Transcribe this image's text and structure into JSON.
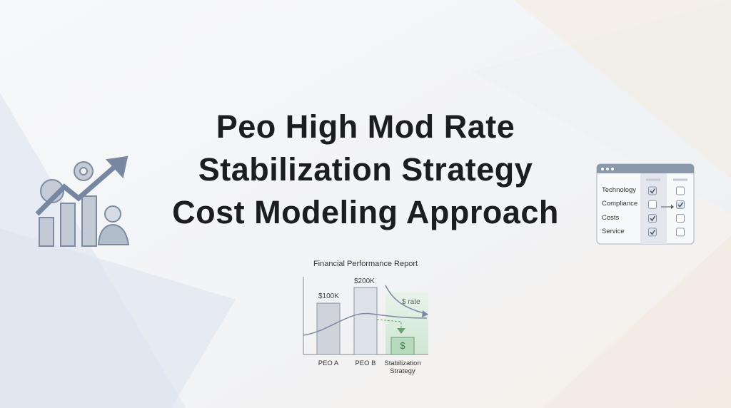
{
  "title_lines": [
    "Peo High Mod Rate",
    "Stabilization Strategy",
    "Cost Modeling Approach"
  ],
  "report": {
    "title": "Financial Performance Report",
    "bar_labels": [
      "$100K",
      "$200K"
    ],
    "rate_label": "$ rate",
    "dollar_icon": "$",
    "categories": [
      "PEO A",
      "PEO B",
      "Stabilization Strategy"
    ]
  },
  "checklist": {
    "items": [
      "Technology",
      "Compliance",
      "Costs",
      "Service"
    ]
  }
}
